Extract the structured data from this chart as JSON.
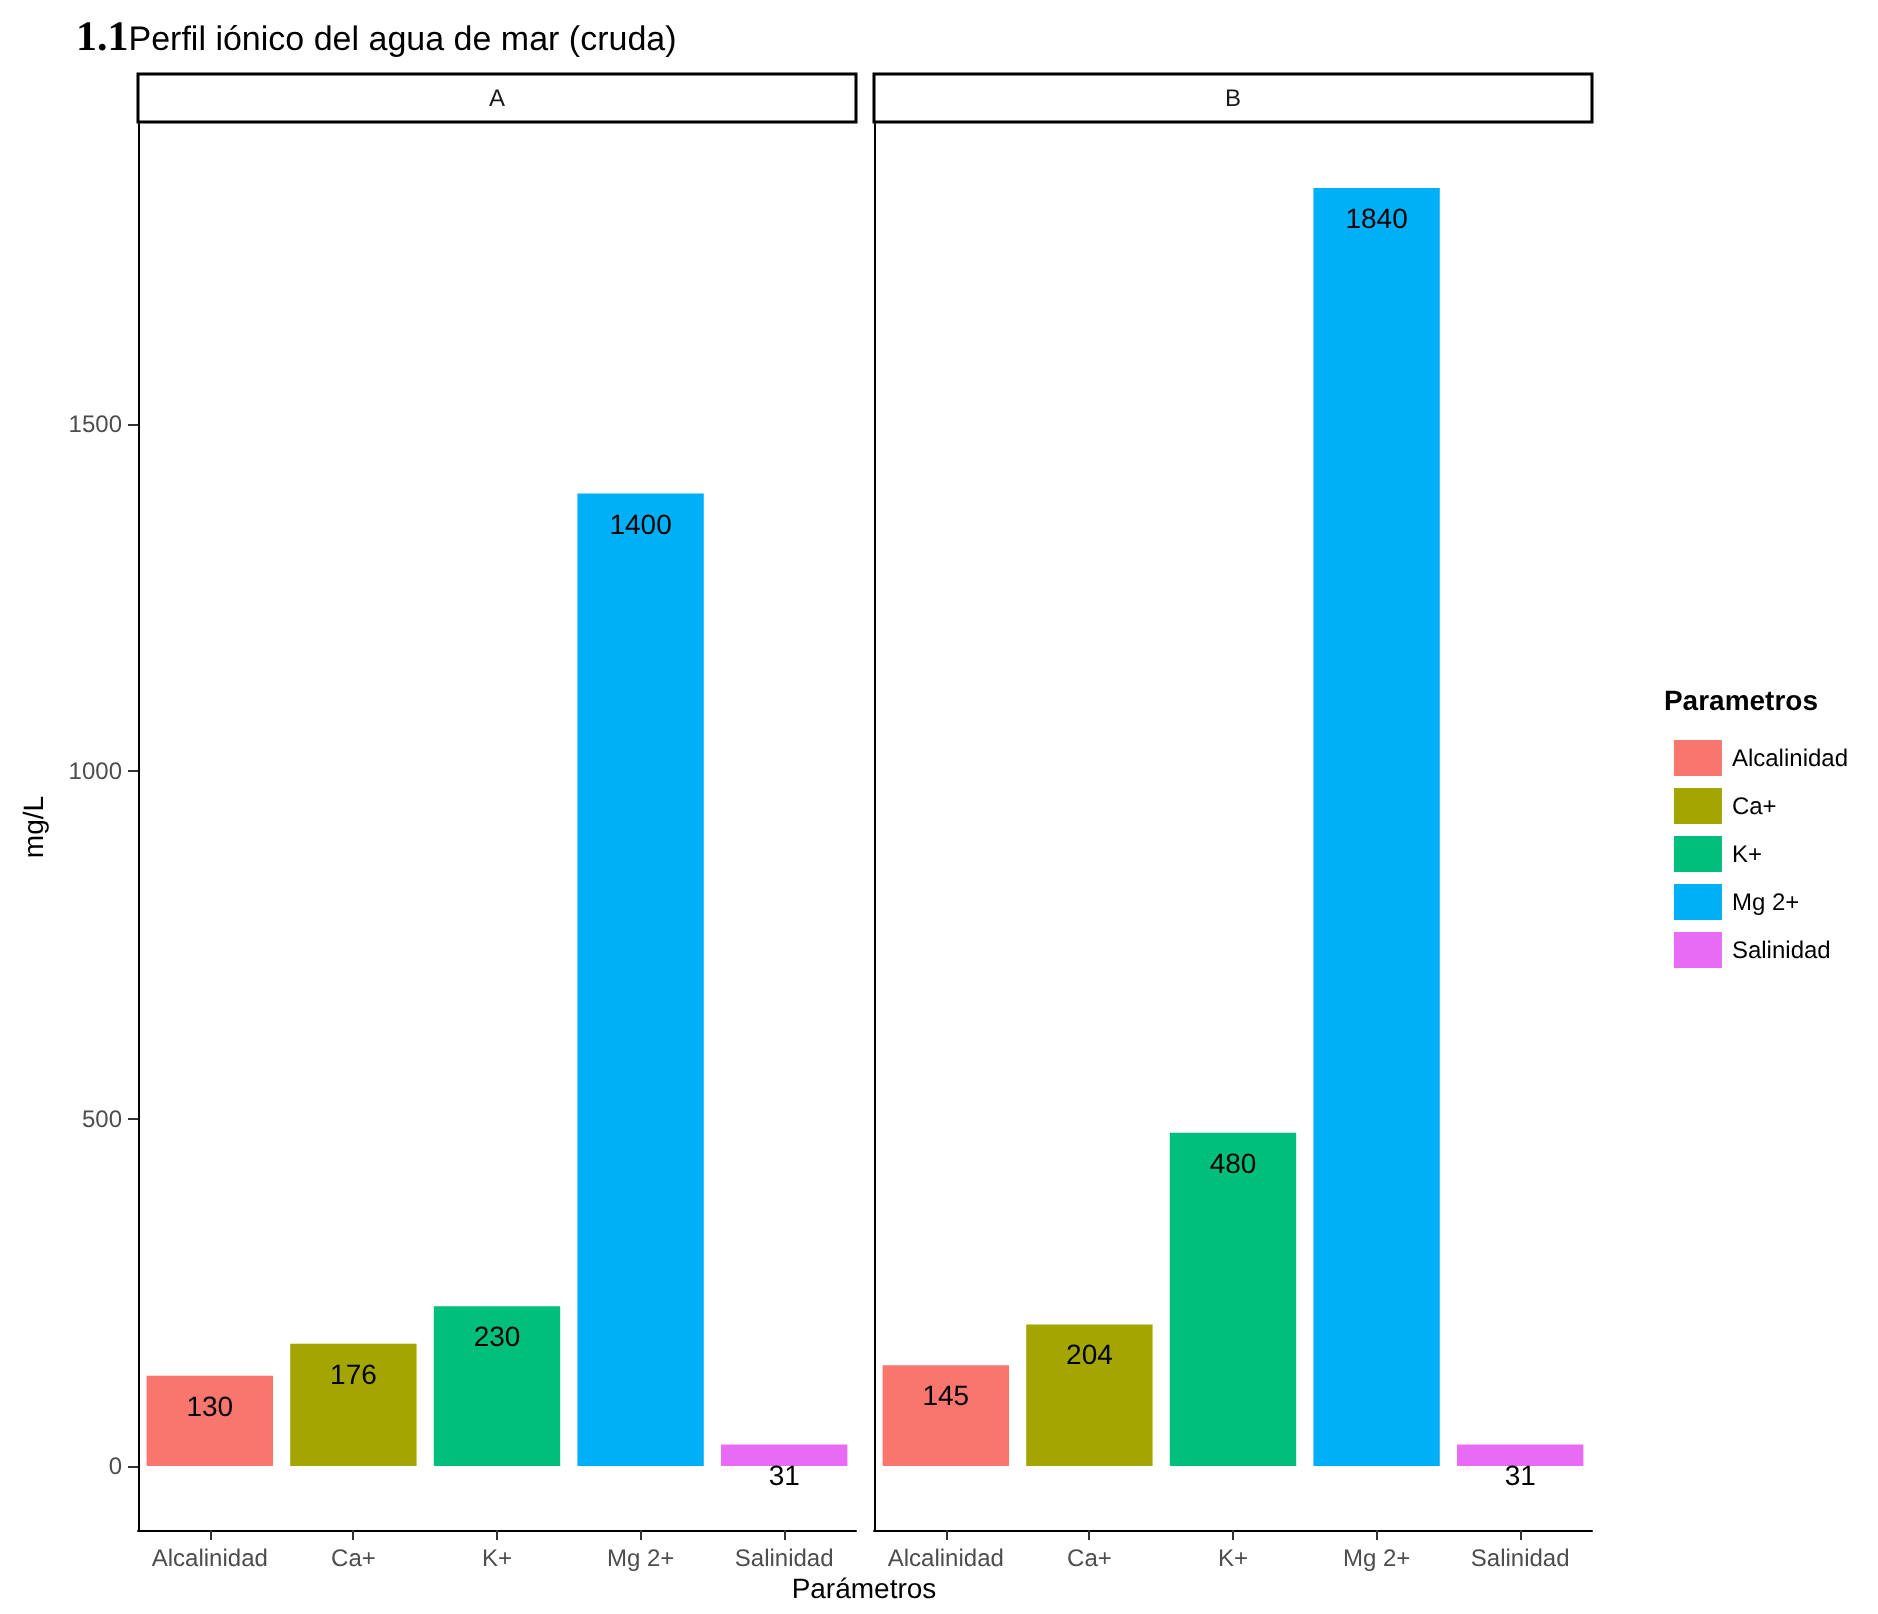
{
  "chart_data": [
    {
      "type": "bar",
      "title": "A",
      "annotations": [
        "1.1"
      ],
      "subtitle": "Perfil iónico del agua de mar (cruda)",
      "xlabel": "Parámetros",
      "ylabel": "mg/L",
      "categories": [
        "Alcalinidad",
        "Ca+",
        "K+",
        "Mg 2+",
        "Salinidad"
      ],
      "series": [
        {
          "color": "#f8766d",
          "values": [
            130,
            null,
            null,
            null,
            null
          ]
        },
        {
          "color": "#a3a500",
          "values": [
            null,
            176,
            null,
            null,
            null
          ]
        },
        {
          "color": "#00bf7d",
          "values": [
            null,
            null,
            230,
            null,
            null
          ]
        },
        {
          "color": "#00b0f6",
          "values": [
            null,
            null,
            null,
            1400,
            null
          ]
        },
        {
          "color": "#e76bf3",
          "values": [
            null,
            null,
            null,
            null,
            31
          ]
        }
      ],
      "ylim": [
        -92,
        1932
      ],
      "yticks": [
        0,
        500,
        1000,
        1500
      ],
      "grid": false,
      "data_labels": true
    },
    {
      "type": "bar",
      "title": "B",
      "categories": [
        "Alcalinidad",
        "Ca+",
        "K+",
        "Mg 2+",
        "Salinidad"
      ],
      "series": [
        {
          "name": "Alcalinidad",
          "color": "#f8766d",
          "values": [
            145,
            null,
            null,
            null,
            null
          ]
        },
        {
          "name": "Ca+",
          "color": "#a3a500",
          "values": [
            null,
            204,
            null,
            null,
            null
          ]
        },
        {
          "name": "K+",
          "color": "#00bf7d",
          "values": [
            null,
            null,
            480,
            null,
            null
          ]
        },
        {
          "name": "Mg 2+",
          "color": "#00b0f6",
          "values": [
            null,
            null,
            null,
            1840,
            null
          ]
        },
        {
          "name": "Salinidad",
          "color": "#e76bf3",
          "values": [
            null,
            null,
            null,
            null,
            31
          ]
        }
      ],
      "ylim": [
        -92,
        1932
      ],
      "yticks": [
        0,
        500,
        1000,
        1500
      ],
      "grid": false,
      "data_labels": true,
      "tick_labels": "x",
      "legend": "right",
      "legend_title": "Parametros"
    }
  ]
}
